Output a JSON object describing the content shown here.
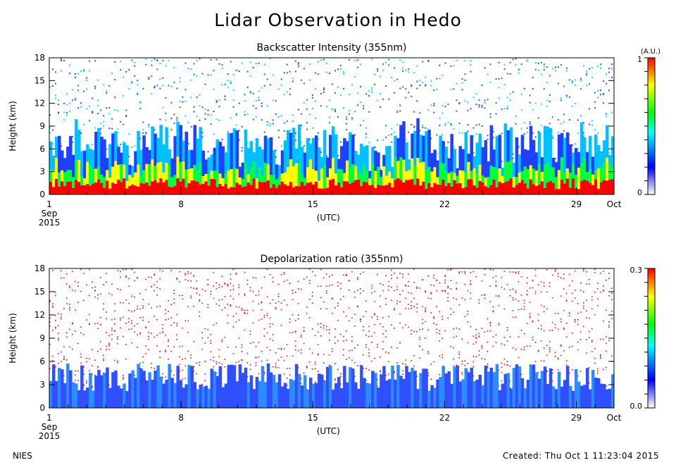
{
  "title": "Lidar Observation in Hedo",
  "footer": {
    "left": "NIES",
    "right": "Created: Thu Oct  1 11:23:04 2015"
  },
  "chart_data": [
    {
      "type": "heatmap",
      "title": "Backscatter Intensity (355nm)",
      "ylabel": "Height (km)",
      "ylim": [
        0,
        18
      ],
      "yticks": [
        "0",
        "3",
        "6",
        "9",
        "12",
        "15",
        "18"
      ],
      "xlabel": "(UTC)",
      "xticks": [
        {
          "label": "1",
          "sub": "Sep",
          "sub2": "2015",
          "day": 1
        },
        {
          "label": "8",
          "day": 8
        },
        {
          "label": "15",
          "day": 15
        },
        {
          "label": "22",
          "day": 22
        },
        {
          "label": "29",
          "day": 29
        },
        {
          "label": "Oct",
          "day": 31
        }
      ],
      "xlim": [
        1,
        31
      ],
      "colorbar": {
        "unit": "(A.U.)",
        "max_label": "1",
        "min_label": "0",
        "range": [
          0,
          1
        ],
        "colors": [
          "#ffffff",
          "#0000ff",
          "#00ffff",
          "#00ff00",
          "#ffff00",
          "#ff0000"
        ]
      },
      "legend": "none",
      "grid": false
    },
    {
      "type": "heatmap",
      "title": "Depolarization ratio (355nm)",
      "ylabel": "Height (km)",
      "ylim": [
        0,
        18
      ],
      "yticks": [
        "0",
        "3",
        "6",
        "9",
        "12",
        "15",
        "18"
      ],
      "xlabel": "(UTC)",
      "xticks": [
        {
          "label": "1",
          "sub": "Sep",
          "sub2": "2015",
          "day": 1
        },
        {
          "label": "8",
          "day": 8
        },
        {
          "label": "15",
          "day": 15
        },
        {
          "label": "22",
          "day": 22
        },
        {
          "label": "29",
          "day": 29
        },
        {
          "label": "Oct",
          "day": 31
        }
      ],
      "xlim": [
        1,
        31
      ],
      "colorbar": {
        "unit": "",
        "max_label": "0.3",
        "min_label": "0.0",
        "range": [
          0,
          0.3
        ],
        "colors": [
          "#ffffff",
          "#0000ff",
          "#00ffff",
          "#00ff00",
          "#ffff00",
          "#ff0000"
        ]
      },
      "legend": "none",
      "grid": false
    }
  ]
}
